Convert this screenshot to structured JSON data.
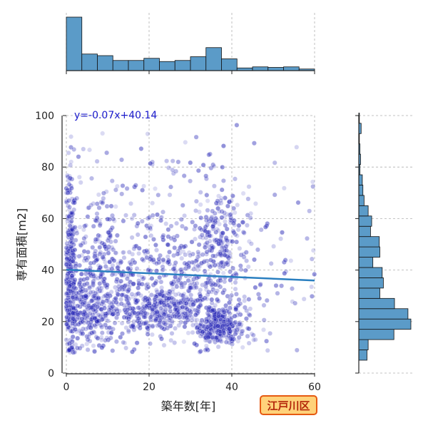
{
  "chart_data": {
    "type": "scatter",
    "xlabel": "築年数[年]",
    "ylabel": "専有面積[m2]",
    "xlim": [
      0,
      60
    ],
    "ylim": [
      0,
      100
    ],
    "xticks": [
      "0",
      "20",
      "40",
      "60"
    ],
    "yticks": [
      "0",
      "20",
      "40",
      "60",
      "80",
      "100"
    ],
    "grid": true,
    "regression": {
      "equation": "y=-0.07x+40.14",
      "slope": -0.07,
      "intercept": 40.14,
      "color": "#2a7fc0"
    },
    "point_color": "#1f1fb4",
    "hist_color": "#5b9bc8",
    "badge": {
      "text": "江戸川区",
      "bg": "#ffd27a",
      "border": "#e65a12",
      "text_color": "#b3260a"
    },
    "clusters": [
      {
        "x": 1,
        "y": 40,
        "sx": 0.6,
        "sy": 18,
        "n": 260
      },
      {
        "x": 5,
        "y": 24,
        "sx": 3,
        "sy": 7,
        "n": 240
      },
      {
        "x": 7,
        "y": 48,
        "sx": 4,
        "sy": 12,
        "n": 170
      },
      {
        "x": 13,
        "y": 30,
        "sx": 4,
        "sy": 10,
        "n": 150
      },
      {
        "x": 22,
        "y": 24,
        "sx": 5,
        "sy": 4,
        "n": 280
      },
      {
        "x": 22,
        "y": 42,
        "sx": 7,
        "sy": 10,
        "n": 150
      },
      {
        "x": 30,
        "y": 35,
        "sx": 4,
        "sy": 12,
        "n": 150
      },
      {
        "x": 37,
        "y": 18,
        "sx": 3,
        "sy": 4,
        "n": 300
      },
      {
        "x": 37,
        "y": 50,
        "sx": 3,
        "sy": 14,
        "n": 230
      },
      {
        "x": 48,
        "y": 38,
        "sx": 7,
        "sy": 14,
        "n": 70
      },
      {
        "x": 25,
        "y": 75,
        "sx": 15,
        "sy": 10,
        "n": 70
      }
    ],
    "x_hist": {
      "bins": [
        0,
        3.75,
        7.5,
        11.25,
        15,
        18.75,
        22.5,
        26.25,
        30,
        33.75,
        37.5,
        41.25,
        45,
        48.75,
        52.5,
        56.25,
        60
      ],
      "counts": [
        100,
        31,
        28,
        19,
        19,
        23,
        17,
        19,
        26,
        43,
        22,
        5,
        7,
        6,
        7,
        3
      ]
    },
    "y_hist": {
      "bins": [
        5,
        9,
        13,
        17,
        21,
        25,
        29,
        33,
        37,
        41,
        45,
        49,
        53,
        57,
        61,
        65,
        69,
        73,
        77,
        81,
        85,
        89,
        93,
        97,
        101
      ],
      "counts": [
        14,
        16,
        60,
        89,
        84,
        61,
        36,
        42,
        40,
        24,
        36,
        35,
        20,
        22,
        16,
        9,
        7,
        6,
        2,
        3,
        2,
        1,
        4,
        1
      ]
    }
  }
}
